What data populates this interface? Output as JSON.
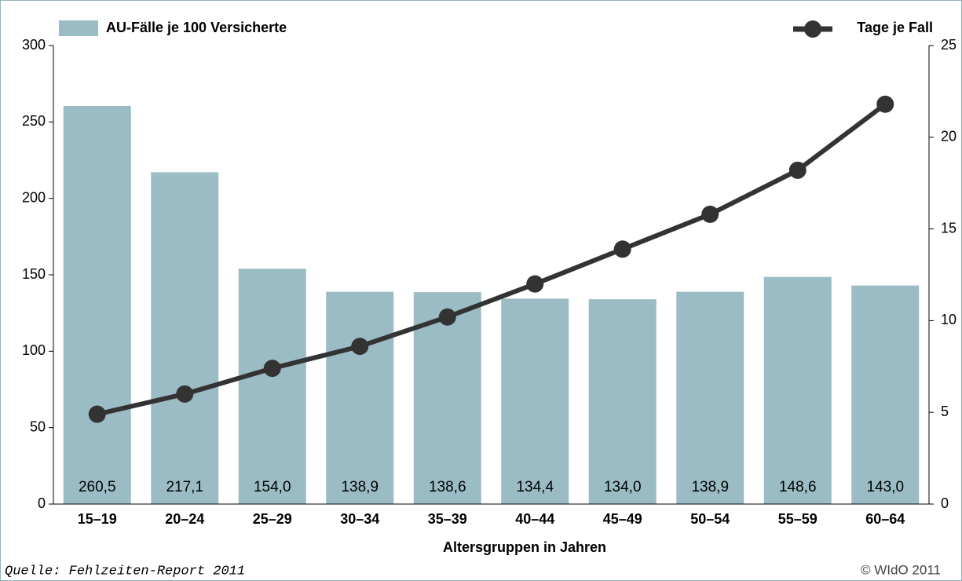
{
  "chart_data": {
    "type": "bar",
    "categories": [
      "15–19",
      "20–24",
      "25–29",
      "30–34",
      "35–39",
      "40–44",
      "45–49",
      "50–54",
      "55–59",
      "60–64"
    ],
    "series": [
      {
        "name": "AU-Fälle je 100 Versicherte",
        "type": "bar",
        "color": "#9bbcc4",
        "values": [
          260.5,
          217.1,
          154.0,
          138.9,
          138.6,
          134.4,
          134.0,
          138.9,
          148.6,
          143.0
        ],
        "value_labels": [
          "260,5",
          "217,1",
          "154,0",
          "138,9",
          "138,6",
          "134,4",
          "134,0",
          "138,9",
          "148,6",
          "143,0"
        ]
      },
      {
        "name": "Tage je Fall",
        "type": "line",
        "axis": "y2",
        "color": "#333333",
        "values": [
          4.9,
          6.0,
          7.4,
          8.6,
          10.2,
          12.0,
          13.9,
          15.8,
          18.2,
          21.8
        ]
      }
    ],
    "ylim": [
      0,
      300
    ],
    "yticks": [
      0,
      50,
      100,
      150,
      200,
      250,
      300
    ],
    "y2lim": [
      0,
      25
    ],
    "y2ticks": [
      0,
      5,
      10,
      15,
      20,
      25
    ],
    "x_label": "Altersgruppen in Jahren",
    "source": "Quelle: Fehlzeiten-Report 2011",
    "credit": "© WIdO 2011"
  }
}
